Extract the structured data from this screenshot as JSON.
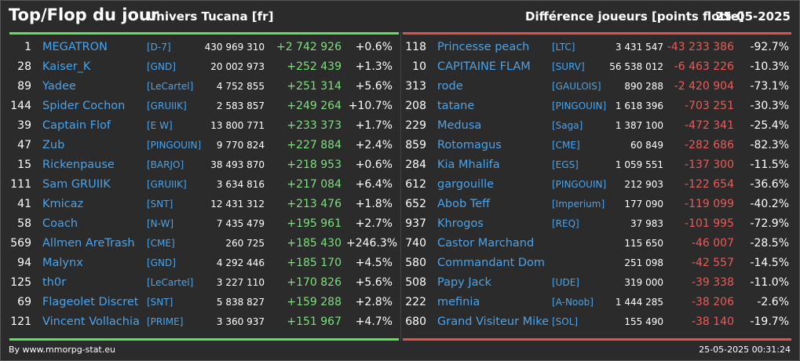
{
  "header": {
    "title": "Top/Flop du jour",
    "subtitle": "Univers Tucana [fr]",
    "metric": "Différence joueurs [points flotte]",
    "date": "25-05-2025"
  },
  "colors": {
    "positive": "#7ce07c",
    "negative": "#ec5a56",
    "name": "#4aa3ea"
  },
  "top": [
    {
      "rank": "1",
      "name": "MEGATRON",
      "clan": "[D-7]",
      "points": "430 969 310",
      "diff": "+2 742 926",
      "pct": "+0.6%"
    },
    {
      "rank": "28",
      "name": "Kaiser_K",
      "clan": "[GND]",
      "points": "20 002 973",
      "diff": "+252 439",
      "pct": "+1.3%"
    },
    {
      "rank": "89",
      "name": "Yadee",
      "clan": "[LeCartel]",
      "points": "4 752 855",
      "diff": "+251 314",
      "pct": "+5.6%"
    },
    {
      "rank": "144",
      "name": "Spider Cochon",
      "clan": "[GRUIIK]",
      "points": "2 583 857",
      "diff": "+249 264",
      "pct": "+10.7%"
    },
    {
      "rank": "39",
      "name": "Captain Flof",
      "clan": "[E W]",
      "points": "13 800 771",
      "diff": "+233 373",
      "pct": "+1.7%"
    },
    {
      "rank": "47",
      "name": "Zub",
      "clan": "[PINGOUIN]",
      "points": "9 770 824",
      "diff": "+227 884",
      "pct": "+2.4%"
    },
    {
      "rank": "15",
      "name": "Rickenpause",
      "clan": "[BARJO]",
      "points": "38 493 870",
      "diff": "+218 953",
      "pct": "+0.6%"
    },
    {
      "rank": "111",
      "name": "Sam GRUIIK",
      "clan": "[GRUIIK]",
      "points": "3 634 816",
      "diff": "+217 084",
      "pct": "+6.4%"
    },
    {
      "rank": "41",
      "name": "Kmicaz",
      "clan": "[SNT]",
      "points": "12 431 312",
      "diff": "+213 476",
      "pct": "+1.8%"
    },
    {
      "rank": "58",
      "name": "Coach",
      "clan": "[N-W]",
      "points": "7 435 479",
      "diff": "+195 961",
      "pct": "+2.7%"
    },
    {
      "rank": "569",
      "name": "Allmen AreTrash",
      "clan": "[CME]",
      "points": "260 725",
      "diff": "+185 430",
      "pct": "+246.3%"
    },
    {
      "rank": "94",
      "name": "Malynx",
      "clan": "[GND]",
      "points": "4 292 446",
      "diff": "+185 170",
      "pct": "+4.5%"
    },
    {
      "rank": "125",
      "name": "th0r",
      "clan": "[LeCartel]",
      "points": "3 227 110",
      "diff": "+170 826",
      "pct": "+5.6%"
    },
    {
      "rank": "69",
      "name": "Flageolet Discret",
      "clan": "[SNT]",
      "points": "5 838 827",
      "diff": "+159 288",
      "pct": "+2.8%"
    },
    {
      "rank": "121",
      "name": "Vincent Vollachia",
      "clan": "[PRIME]",
      "points": "3 360 937",
      "diff": "+151 967",
      "pct": "+4.7%"
    }
  ],
  "flop": [
    {
      "rank": "118",
      "name": "Princesse peach",
      "clan": "[LTC]",
      "points": "3 431 547",
      "diff": "-43 233 386",
      "pct": "-92.7%"
    },
    {
      "rank": "10",
      "name": "CAPITAINE FLAM",
      "clan": "[SURV]",
      "points": "56 538 012",
      "diff": "-6 463 226",
      "pct": "-10.3%"
    },
    {
      "rank": "313",
      "name": "rode",
      "clan": "[GAULOIS]",
      "points": "890 288",
      "diff": "-2 420 904",
      "pct": "-73.1%"
    },
    {
      "rank": "208",
      "name": "tatane",
      "clan": "[PINGOUIN]",
      "points": "1 618 396",
      "diff": "-703 251",
      "pct": "-30.3%"
    },
    {
      "rank": "229",
      "name": "Medusa",
      "clan": "[Saga]",
      "points": "1 387 100",
      "diff": "-472 341",
      "pct": "-25.4%"
    },
    {
      "rank": "859",
      "name": "Rotomagus",
      "clan": "[CME]",
      "points": "60 849",
      "diff": "-282 686",
      "pct": "-82.3%"
    },
    {
      "rank": "284",
      "name": "Kia Mhalifa",
      "clan": "[EGS]",
      "points": "1 059 551",
      "diff": "-137 300",
      "pct": "-11.5%"
    },
    {
      "rank": "612",
      "name": "gargouille",
      "clan": "[PINGOUIN]",
      "points": "212 903",
      "diff": "-122 654",
      "pct": "-36.6%"
    },
    {
      "rank": "652",
      "name": "Abob Teff",
      "clan": "[Imperium]",
      "points": "177 090",
      "diff": "-119 099",
      "pct": "-40.2%"
    },
    {
      "rank": "937",
      "name": "Khrogos",
      "clan": "[REQ]",
      "points": "37 983",
      "diff": "-101 995",
      "pct": "-72.9%"
    },
    {
      "rank": "740",
      "name": "Castor Marchand",
      "clan": "",
      "points": "115 650",
      "diff": "-46 007",
      "pct": "-28.5%"
    },
    {
      "rank": "580",
      "name": "Commandant Dom",
      "clan": "",
      "points": "251 098",
      "diff": "-42 557",
      "pct": "-14.5%"
    },
    {
      "rank": "508",
      "name": "Papy Jack",
      "clan": "[UDE]",
      "points": "319 000",
      "diff": "-39 338",
      "pct": "-11.0%"
    },
    {
      "rank": "222",
      "name": "mefinia",
      "clan": "[A-Noob]",
      "points": "1 444 285",
      "diff": "-38 206",
      "pct": "-2.6%"
    },
    {
      "rank": "680",
      "name": "Grand Visiteur Mike",
      "clan": "[SOL]",
      "points": "155 490",
      "diff": "-38 140",
      "pct": "-19.7%"
    }
  ],
  "footer": {
    "source": "By www.mmorpg-stat.eu",
    "timestamp": "25-05-2025 00:31:24"
  }
}
